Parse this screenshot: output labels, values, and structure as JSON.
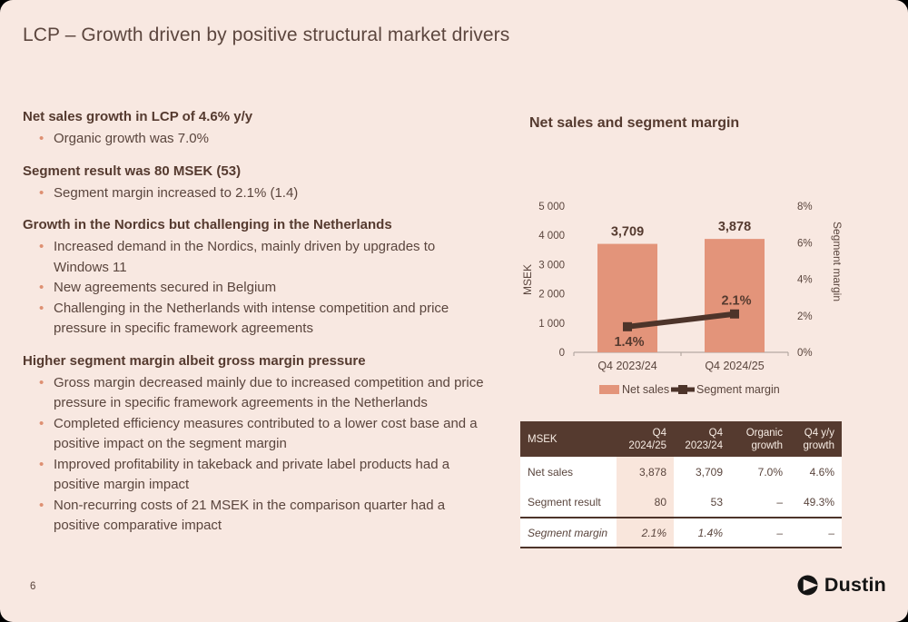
{
  "slide": {
    "title": "LCP – Growth driven by positive structural market drivers",
    "page_number": "6"
  },
  "logo": {
    "icon": "dustin-play-icon",
    "text": "Dustin"
  },
  "left_column": {
    "sections": [
      {
        "heading": "Net sales growth in LCP of 4.6% y/y",
        "bullets": [
          "Organic growth was 7.0%"
        ]
      },
      {
        "heading": "Segment result was 80 MSEK (53)",
        "bullets": [
          "Segment margin increased to 2.1% (1.4)"
        ]
      },
      {
        "heading": "Growth in the Nordics but challenging in the Netherlands",
        "bullets": [
          "Increased demand in the Nordics, mainly driven by upgrades to Windows 11",
          "New agreements secured in Belgium",
          "Challenging in the Netherlands with intense competition and price pressure in specific framework agreements"
        ]
      },
      {
        "heading": "Higher segment margin albeit gross margin pressure",
        "bullets": [
          "Gross margin decreased mainly due to increased competition and price pressure in specific framework agreements in the Netherlands",
          "Completed efficiency measures contributed to a lower cost base and a positive impact on the segment margin",
          "Improved profitability in takeback and private label products had a positive margin impact",
          "Non-recurring costs of 21 MSEK in the comparison quarter had a positive comparative impact"
        ]
      }
    ]
  },
  "chart_data": {
    "type": "bar",
    "title": "Net sales and segment margin",
    "categories": [
      "Q4 2023/24",
      "Q4 2024/25"
    ],
    "series": [
      {
        "name": "Net sales",
        "type": "bar",
        "axis": "left",
        "values": [
          3709,
          3878
        ],
        "labels": [
          "3,709",
          "3,878"
        ],
        "color": "#e3947a"
      },
      {
        "name": "Segment margin",
        "type": "line",
        "axis": "right",
        "values": [
          1.4,
          2.1
        ],
        "labels": [
          "1.4%",
          "2.1%"
        ],
        "color": "#4d342a"
      }
    ],
    "left_axis": {
      "label": "MSEK",
      "min": 0,
      "max": 5000,
      "ticks": [
        "5 000",
        "4 000",
        "3 000",
        "2 000",
        "1 000",
        "0"
      ]
    },
    "right_axis": {
      "label": "Segment margin",
      "min": 0,
      "max": 8,
      "ticks": [
        "8%",
        "6%",
        "4%",
        "2%",
        "0%"
      ]
    },
    "legend": {
      "position": "bottom",
      "items": [
        "Net sales",
        "Segment margin"
      ]
    },
    "grid": false
  },
  "table": {
    "header": [
      "MSEK",
      "Q4 2024/25",
      "Q4 2023/24",
      "Organic growth",
      "Q4 y/y growth"
    ],
    "highlight_column": "Q4 2024/25",
    "rows": [
      {
        "label": "Net sales",
        "values": [
          "3,878",
          "3,709",
          "7.0%",
          "4.6%"
        ],
        "italic": false
      },
      {
        "label": "Segment result",
        "values": [
          "80",
          "53",
          "–",
          "49.3%"
        ],
        "italic": false
      },
      {
        "label": "Segment margin",
        "values": [
          "2.1%",
          "1.4%",
          "–",
          "–"
        ],
        "italic": true
      }
    ]
  },
  "theme": {
    "background": "#f8e8e1",
    "text": "#5a453d",
    "heading": "#553a2f",
    "accent_salmon": "#e3947a",
    "accent_dark_brown": "#4d342a",
    "table_header_bg": "#553a2f",
    "table_highlight_bg": "#f9e6dc"
  }
}
